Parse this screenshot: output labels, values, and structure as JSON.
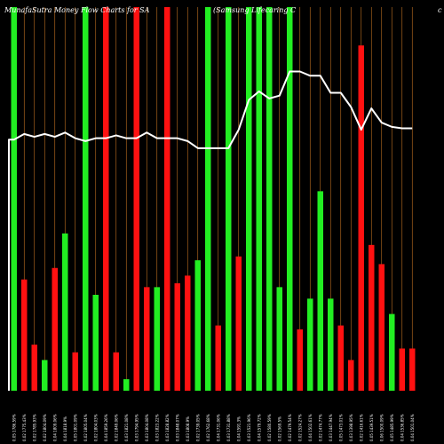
{
  "header": {
    "left_title": "MunafaSutra  Money Flow  Charts for SA",
    "mid_title": "(Samsung  Lifecaring C",
    "right_title": "c"
  },
  "colors": {
    "background": "#000000",
    "bullish": "#22ee22",
    "bearish": "#ff1111",
    "grid_orange": "#c07020",
    "price_line": "#ffffff",
    "text": "#ffffff"
  },
  "chart_data": {
    "type": "bar",
    "title": "MunafaSutra  Money Flow  Charts for SA",
    "grid": true,
    "value_scale": "unlabeled relative volume (bar tops) and price (line); no axis values printed",
    "ylim": [
      0,
      100
    ],
    "price_ylim": [
      0,
      100
    ],
    "categories": [
      "0.05 1786.59%",
      "0.02 1775.43%",
      "0.02 1785.93%",
      "0.02 1804.09%",
      "0.04 1809.06%",
      "0.04 1818.9%",
      "0.05 1801.09%",
      "0.02 1805.04%",
      "0.02 1804.03%",
      "0.04 1859.26%",
      "0.02 1849.06%",
      "0.03 1821.08%",
      "0.03 1794.95%",
      "0.03 1804.08%",
      "0.03 1823.22%",
      "0.03 1828.82%",
      "0.03 1848.07%",
      "0.03 1808.9%",
      "0.02 1739.05%",
      "0.02 1762.68%",
      "0.04 1731.06%",
      "0.03 1731.88%",
      "0.04 1591.3%",
      "0.03 1521.96%",
      "0.04 1579.72%",
      "0.02 1580.59%",
      "0.02 1569.5%",
      "0.02 1479.54%",
      "0.02 1524.27%",
      "0.04 1502.61%",
      "0.02 1474.77%",
      "0.03 1447.94%",
      "0.05 1473.01%",
      "0.03 1398.95%",
      "0.02 1416.61%",
      "0.05 1439.51%",
      "0.06 1500.09%",
      "0.05 1485.99%",
      "0.04 1536.85%",
      "0.04 1501.04%"
    ],
    "bar_colors": [
      "green",
      "red",
      "red",
      "green",
      "red",
      "green",
      "red",
      "green",
      "green",
      "red",
      "red",
      "green",
      "red",
      "red",
      "green",
      "red",
      "red",
      "red",
      "green",
      "green",
      "red",
      "green",
      "red",
      "green",
      "green",
      "green",
      "green",
      "green",
      "red",
      "green",
      "green",
      "green",
      "red",
      "red",
      "red",
      "red",
      "red",
      "green",
      "red",
      "red"
    ],
    "values": [
      100,
      29,
      12,
      8,
      32,
      41,
      10,
      100,
      25,
      100,
      10,
      3,
      100,
      27,
      27,
      100,
      28,
      30,
      34,
      100,
      17,
      100,
      35,
      100,
      100,
      100,
      27,
      100,
      16,
      24,
      52,
      24,
      17,
      8,
      90,
      38,
      33,
      20,
      11,
      11
    ],
    "price": [
      63,
      67,
      65,
      67,
      65,
      68,
      64,
      62,
      64,
      64,
      66,
      64,
      64,
      68,
      64,
      64,
      64,
      62,
      57,
      57,
      57,
      57,
      70,
      91,
      97,
      92,
      94,
      111,
      111,
      108,
      108,
      96,
      96,
      86,
      70,
      85,
      75,
      72,
      71,
      71
    ]
  }
}
